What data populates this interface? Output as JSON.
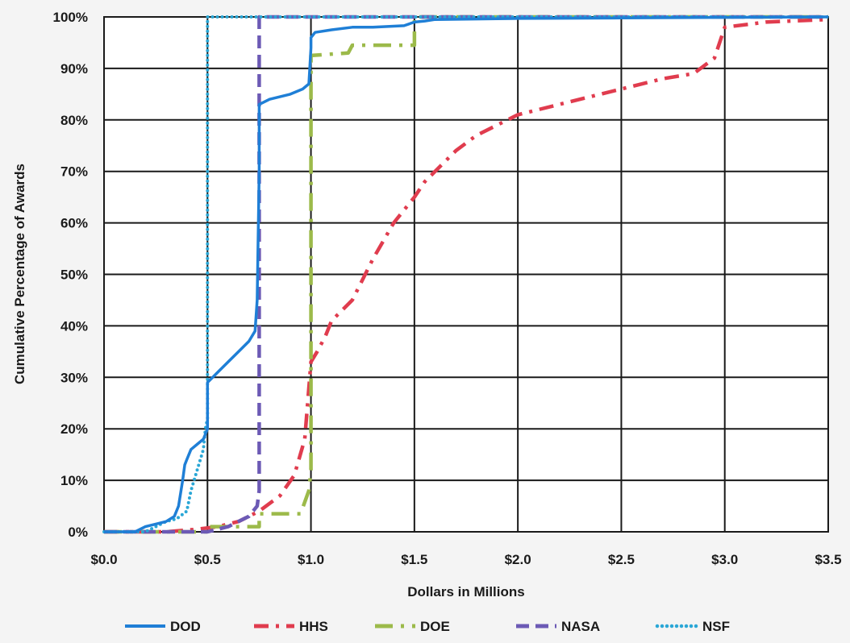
{
  "chart_data": {
    "type": "line",
    "title": "",
    "xlabel": "Dollars in Millions",
    "ylabel": "Cumulative Percentage of Awards",
    "xlim": [
      0,
      3.5
    ],
    "ylim": [
      0,
      100
    ],
    "x_ticks": [
      0,
      0.5,
      1.0,
      1.5,
      2.0,
      2.5,
      3.0,
      3.5
    ],
    "x_tick_labels": [
      "$0.0",
      "$0.5",
      "$1.0",
      "$1.5",
      "$2.0",
      "$2.5",
      "$3.0",
      "$3.5"
    ],
    "y_ticks": [
      0,
      10,
      20,
      30,
      40,
      50,
      60,
      70,
      80,
      90,
      100
    ],
    "y_tick_labels": [
      "0%",
      "10%",
      "20%",
      "30%",
      "40%",
      "50%",
      "60%",
      "70%",
      "80%",
      "90%",
      "100%"
    ],
    "grid": true,
    "legend_position": "bottom",
    "series": [
      {
        "name": "DOD",
        "color": "#1f7fd6",
        "style": "solid",
        "x": [
          0.0,
          0.15,
          0.2,
          0.25,
          0.3,
          0.34,
          0.36,
          0.38,
          0.39,
          0.4,
          0.42,
          0.45,
          0.48,
          0.5,
          0.5,
          0.55,
          0.6,
          0.65,
          0.7,
          0.73,
          0.74,
          0.75,
          0.75,
          0.8,
          0.9,
          0.96,
          0.99,
          1.0,
          1.0,
          1.02,
          1.1,
          1.2,
          1.3,
          1.45,
          1.5,
          1.55,
          1.6,
          2.0,
          2.5,
          3.0,
          3.5
        ],
        "y": [
          0,
          0,
          1,
          1.5,
          2,
          3,
          5,
          10,
          13,
          14,
          16,
          17,
          18,
          20,
          29,
          31,
          33,
          35,
          37,
          39,
          45,
          70,
          83,
          84,
          85,
          86,
          87,
          94,
          96,
          97,
          97.5,
          98,
          98,
          98.3,
          99,
          99.2,
          99.5,
          99.7,
          99.8,
          99.9,
          100
        ]
      },
      {
        "name": "HHS",
        "color": "#e03c4e",
        "style": "dashed",
        "x": [
          0.0,
          0.3,
          0.45,
          0.55,
          0.65,
          0.75,
          0.85,
          0.92,
          0.97,
          1.0,
          1.03,
          1.07,
          1.1,
          1.2,
          1.3,
          1.4,
          1.5,
          1.55,
          1.6,
          1.7,
          1.8,
          1.9,
          2.0,
          2.1,
          2.3,
          2.5,
          2.7,
          2.85,
          2.95,
          3.0,
          3.2,
          3.5
        ],
        "y": [
          0,
          0,
          0.5,
          1,
          2,
          4,
          7,
          11,
          18,
          33,
          35,
          38,
          41,
          45,
          53,
          60,
          65,
          68,
          70,
          74,
          77,
          79,
          81,
          82,
          84,
          86,
          88,
          89,
          92,
          98,
          99,
          99.5
        ]
      },
      {
        "name": "DOE",
        "color": "#9cba4a",
        "style": "dashdot",
        "x": [
          0.0,
          0.5,
          0.5,
          0.75,
          0.75,
          0.95,
          0.99,
          1.0,
          1.0,
          1.18,
          1.2,
          1.5,
          1.5,
          1.5,
          3.5
        ],
        "y": [
          0,
          0,
          1,
          1,
          3.5,
          3.5,
          8,
          12,
          92.5,
          93,
          94.5,
          94.5,
          98,
          100,
          100
        ]
      },
      {
        "name": "NASA",
        "color": "#6c5ab5",
        "style": "longdash",
        "x": [
          0.0,
          0.5,
          0.6,
          0.7,
          0.74,
          0.75,
          0.75,
          0.75,
          3.5
        ],
        "y": [
          0,
          0,
          1,
          3,
          5,
          8,
          60,
          100,
          100
        ]
      },
      {
        "name": "NSF",
        "color": "#2aa7d6",
        "style": "dotted",
        "x": [
          0.0,
          0.2,
          0.3,
          0.35,
          0.4,
          0.42,
          0.45,
          0.48,
          0.49,
          0.5,
          0.5,
          3.5
        ],
        "y": [
          0,
          0,
          2,
          2.5,
          4,
          8,
          12,
          16,
          20,
          22,
          100,
          100
        ]
      }
    ]
  }
}
